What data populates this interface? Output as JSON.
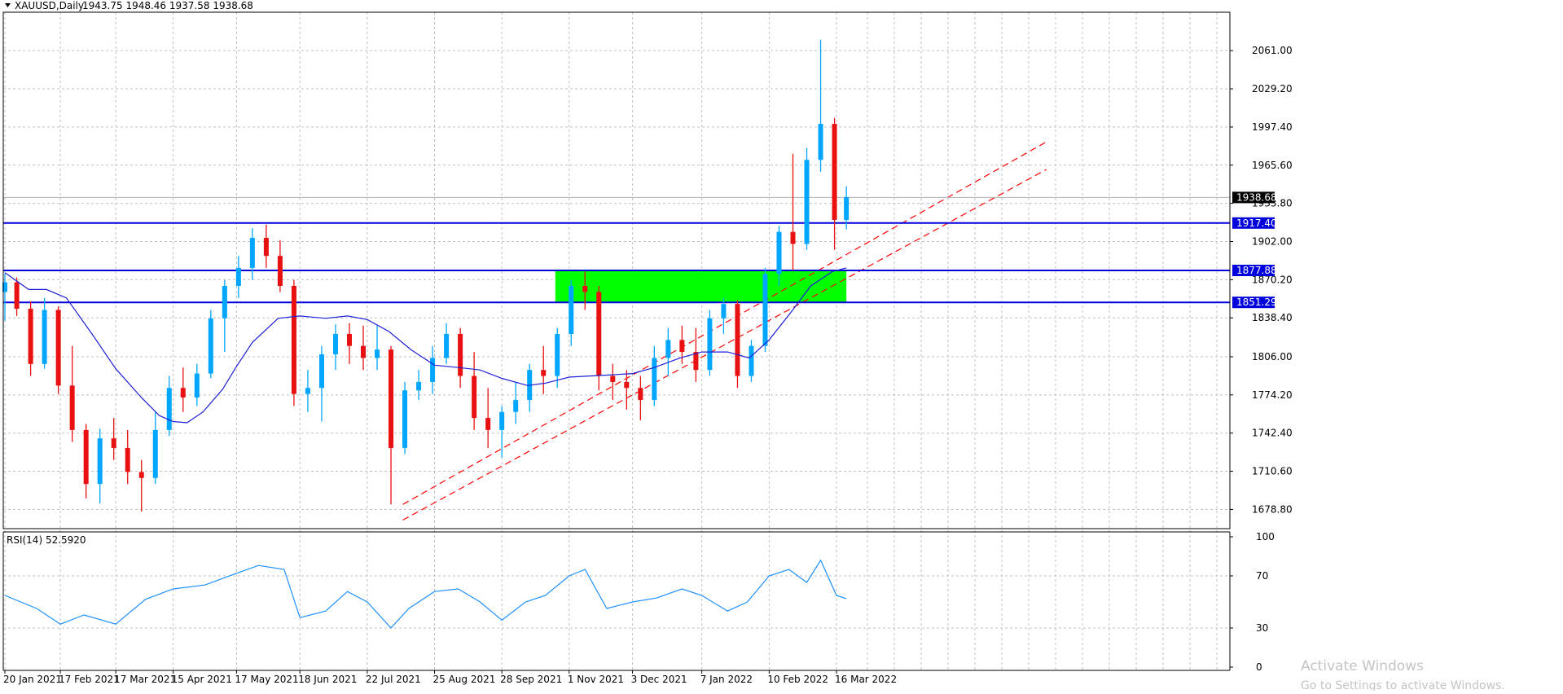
{
  "header": {
    "symbol_label": "XAUUSD,Daily",
    "ohlc": "1943.75 1948.46 1937.58 1938.68"
  },
  "rsi_header": "RSI(14) 52.5920",
  "watermark": {
    "line1": "Activate Windows",
    "line2": "Go to Settings to activate Windows."
  },
  "colors": {
    "up_candle": "#00a6ff",
    "down_candle": "#e81010",
    "moving_average": "#1e1ed8",
    "level_line": "#0000dd",
    "trendline": "#ff0000",
    "zone": "#00ff00",
    "rsi_line": "#1e90ff",
    "grid": "#c0c0c0"
  },
  "chart_data": [
    {
      "type": "candlestick",
      "title": "XAUUSD,Daily",
      "ylim": [
        1662.8,
        2093.0
      ],
      "grid": true,
      "price_ticks": [
        "2061.00",
        "2029.20",
        "1997.40",
        "1965.60",
        "1933.80",
        "1902.00",
        "1870.20",
        "1838.40",
        "1806.00",
        "1774.20",
        "1742.40",
        "1710.60",
        "1678.80"
      ],
      "date_ticks": [
        "20 Jan 2021",
        "17 Feb 2021",
        "17 Mar 2021",
        "15 Apr 2021",
        "17 May 2021",
        "18 Jun 2021",
        "22 Jul 2021",
        "25 Aug 2021",
        "28 Sep 2021",
        "1 Nov 2021",
        "3 Dec 2021",
        "7 Jan 2022",
        "10 Feb 2022",
        "16 Mar 2022"
      ],
      "current_price": "1938.68",
      "horizontal_levels": [
        {
          "label": "1917.40",
          "value": 1917.4
        },
        {
          "label": "1877.88",
          "value": 1877.88
        },
        {
          "label": "1851.29",
          "value": 1851.29
        }
      ],
      "zone": {
        "from_date": "25 Oct 2021",
        "to_date": "21 Mar 2022",
        "low": 1851.29,
        "high": 1877.88
      },
      "trendlines": [
        {
          "from": {
            "date": "9 Aug 2021",
            "price": 1683
          },
          "to": {
            "date": "30 Jun 2022",
            "price": 1985
          }
        },
        {
          "from": {
            "date": "9 Aug 2021",
            "price": 1670
          },
          "to": {
            "date": "30 Jun 2022",
            "price": 1962
          }
        }
      ],
      "moving_average_series": [
        {
          "date": "20 Jan 2021",
          "value": 1876
        },
        {
          "date": "1 Feb 2021",
          "value": 1862
        },
        {
          "date": "10 Feb 2021",
          "value": 1862
        },
        {
          "date": "20 Feb 2021",
          "value": 1855
        },
        {
          "date": "5 Mar 2021",
          "value": 1825
        },
        {
          "date": "17 Mar 2021",
          "value": 1796
        },
        {
          "date": "30 Mar 2021",
          "value": 1772
        },
        {
          "date": "8 Apr 2021",
          "value": 1757
        },
        {
          "date": "15 Apr 2021",
          "value": 1752
        },
        {
          "date": "22 Apr 2021",
          "value": 1751
        },
        {
          "date": "30 Apr 2021",
          "value": 1760
        },
        {
          "date": "10 May 2021",
          "value": 1779
        },
        {
          "date": "17 May 2021",
          "value": 1798
        },
        {
          "date": "25 May 2021",
          "value": 1818
        },
        {
          "date": "7 Jun 2021",
          "value": 1838
        },
        {
          "date": "18 Jun 2021",
          "value": 1840
        },
        {
          "date": "1 Jul 2021",
          "value": 1838
        },
        {
          "date": "12 Jul 2021",
          "value": 1840
        },
        {
          "date": "22 Jul 2021",
          "value": 1837
        },
        {
          "date": "2 Aug 2021",
          "value": 1827
        },
        {
          "date": "13 Aug 2021",
          "value": 1812
        },
        {
          "date": "25 Aug 2021",
          "value": 1799
        },
        {
          "date": "6 Sep 2021",
          "value": 1797
        },
        {
          "date": "17 Sep 2021",
          "value": 1795
        },
        {
          "date": "28 Sep 2021",
          "value": 1788
        },
        {
          "date": "11 Oct 2021",
          "value": 1782
        },
        {
          "date": "20 Oct 2021",
          "value": 1784
        },
        {
          "date": "1 Nov 2021",
          "value": 1789
        },
        {
          "date": "12 Nov 2021",
          "value": 1790
        },
        {
          "date": "23 Nov 2021",
          "value": 1791
        },
        {
          "date": "3 Dec 2021",
          "value": 1792
        },
        {
          "date": "14 Dec 2021",
          "value": 1797
        },
        {
          "date": "27 Dec 2021",
          "value": 1805
        },
        {
          "date": "7 Jan 2022",
          "value": 1810
        },
        {
          "date": "20 Jan 2022",
          "value": 1810
        },
        {
          "date": "31 Jan 2022",
          "value": 1805
        },
        {
          "date": "10 Feb 2022",
          "value": 1820
        },
        {
          "date": "21 Feb 2022",
          "value": 1843
        },
        {
          "date": "3 Mar 2022",
          "value": 1865
        },
        {
          "date": "14 Mar 2022",
          "value": 1877
        },
        {
          "date": "21 Mar 2022",
          "value": 1880
        }
      ],
      "ohlc_series": [
        {
          "date": "20 Jan 2021",
          "open": 1860,
          "high": 1875,
          "low": 1836,
          "close": 1868
        },
        {
          "date": "26 Jan 2021",
          "open": 1868,
          "high": 1872,
          "low": 1840,
          "close": 1846
        },
        {
          "date": "2 Feb 2021",
          "open": 1846,
          "high": 1852,
          "low": 1790,
          "close": 1800
        },
        {
          "date": "9 Feb 2021",
          "open": 1800,
          "high": 1855,
          "low": 1796,
          "close": 1845
        },
        {
          "date": "16 Feb 2021",
          "open": 1845,
          "high": 1848,
          "low": 1775,
          "close": 1782
        },
        {
          "date": "23 Feb 2021",
          "open": 1782,
          "high": 1815,
          "low": 1735,
          "close": 1745
        },
        {
          "date": "2 Mar 2021",
          "open": 1745,
          "high": 1750,
          "low": 1688,
          "close": 1700
        },
        {
          "date": "9 Mar 2021",
          "open": 1700,
          "high": 1746,
          "low": 1684,
          "close": 1738
        },
        {
          "date": "16 Mar 2021",
          "open": 1738,
          "high": 1755,
          "low": 1720,
          "close": 1730
        },
        {
          "date": "23 Mar 2021",
          "open": 1730,
          "high": 1745,
          "low": 1700,
          "close": 1710
        },
        {
          "date": "30 Mar 2021",
          "open": 1710,
          "high": 1720,
          "low": 1677,
          "close": 1705
        },
        {
          "date": "6 Apr 2021",
          "open": 1705,
          "high": 1760,
          "low": 1700,
          "close": 1745
        },
        {
          "date": "13 Apr 2021",
          "open": 1745,
          "high": 1790,
          "low": 1740,
          "close": 1780
        },
        {
          "date": "20 Apr 2021",
          "open": 1780,
          "high": 1797,
          "low": 1760,
          "close": 1772
        },
        {
          "date": "27 Apr 2021",
          "open": 1772,
          "high": 1800,
          "low": 1765,
          "close": 1792
        },
        {
          "date": "4 May 2021",
          "open": 1792,
          "high": 1845,
          "low": 1788,
          "close": 1838
        },
        {
          "date": "11 May 2021",
          "open": 1838,
          "high": 1870,
          "low": 1810,
          "close": 1865
        },
        {
          "date": "18 May 2021",
          "open": 1865,
          "high": 1890,
          "low": 1855,
          "close": 1880
        },
        {
          "date": "25 May 2021",
          "open": 1880,
          "high": 1913,
          "low": 1870,
          "close": 1905
        },
        {
          "date": "1 Jun 2021",
          "open": 1905,
          "high": 1916,
          "low": 1880,
          "close": 1890
        },
        {
          "date": "8 Jun 2021",
          "open": 1890,
          "high": 1903,
          "low": 1860,
          "close": 1865
        },
        {
          "date": "15 Jun 2021",
          "open": 1865,
          "high": 1870,
          "low": 1765,
          "close": 1775
        },
        {
          "date": "22 Jun 2021",
          "open": 1775,
          "high": 1795,
          "low": 1760,
          "close": 1780
        },
        {
          "date": "29 Jun 2021",
          "open": 1780,
          "high": 1815,
          "low": 1752,
          "close": 1808
        },
        {
          "date": "6 Jul 2021",
          "open": 1808,
          "high": 1833,
          "low": 1795,
          "close": 1825
        },
        {
          "date": "13 Jul 2021",
          "open": 1825,
          "high": 1834,
          "low": 1800,
          "close": 1815
        },
        {
          "date": "20 Jul 2021",
          "open": 1815,
          "high": 1832,
          "low": 1795,
          "close": 1805
        },
        {
          "date": "27 Jul 2021",
          "open": 1805,
          "high": 1832,
          "low": 1795,
          "close": 1812
        },
        {
          "date": "3 Aug 2021",
          "open": 1812,
          "high": 1815,
          "low": 1683,
          "close": 1730
        },
        {
          "date": "10 Aug 2021",
          "open": 1730,
          "high": 1785,
          "low": 1725,
          "close": 1778
        },
        {
          "date": "17 Aug 2021",
          "open": 1778,
          "high": 1795,
          "low": 1770,
          "close": 1785
        },
        {
          "date": "24 Aug 2021",
          "open": 1785,
          "high": 1815,
          "low": 1775,
          "close": 1805
        },
        {
          "date": "31 Aug 2021",
          "open": 1805,
          "high": 1834,
          "low": 1800,
          "close": 1825
        },
        {
          "date": "7 Sep 2021",
          "open": 1825,
          "high": 1830,
          "low": 1780,
          "close": 1790
        },
        {
          "date": "14 Sep 2021",
          "open": 1790,
          "high": 1810,
          "low": 1745,
          "close": 1755
        },
        {
          "date": "21 Sep 2021",
          "open": 1755,
          "high": 1780,
          "low": 1730,
          "close": 1745
        },
        {
          "date": "28 Sep 2021",
          "open": 1745,
          "high": 1765,
          "low": 1722,
          "close": 1760
        },
        {
          "date": "5 Oct 2021",
          "open": 1760,
          "high": 1785,
          "low": 1750,
          "close": 1770
        },
        {
          "date": "12 Oct 2021",
          "open": 1770,
          "high": 1800,
          "low": 1760,
          "close": 1795
        },
        {
          "date": "19 Oct 2021",
          "open": 1795,
          "high": 1815,
          "low": 1775,
          "close": 1790
        },
        {
          "date": "26 Oct 2021",
          "open": 1790,
          "high": 1830,
          "low": 1780,
          "close": 1825
        },
        {
          "date": "2 Nov 2021",
          "open": 1825,
          "high": 1870,
          "low": 1815,
          "close": 1865
        },
        {
          "date": "9 Nov 2021",
          "open": 1865,
          "high": 1877,
          "low": 1845,
          "close": 1860
        },
        {
          "date": "16 Nov 2021",
          "open": 1860,
          "high": 1865,
          "low": 1778,
          "close": 1790
        },
        {
          "date": "23 Nov 2021",
          "open": 1790,
          "high": 1800,
          "low": 1770,
          "close": 1785
        },
        {
          "date": "30 Nov 2021",
          "open": 1785,
          "high": 1795,
          "low": 1762,
          "close": 1780
        },
        {
          "date": "7 Dec 2021",
          "open": 1780,
          "high": 1790,
          "low": 1753,
          "close": 1770
        },
        {
          "date": "14 Dec 2021",
          "open": 1770,
          "high": 1815,
          "low": 1765,
          "close": 1805
        },
        {
          "date": "21 Dec 2021",
          "open": 1805,
          "high": 1830,
          "low": 1790,
          "close": 1820
        },
        {
          "date": "28 Dec 2021",
          "open": 1820,
          "high": 1832,
          "low": 1800,
          "close": 1810
        },
        {
          "date": "4 Jan 2022",
          "open": 1810,
          "high": 1830,
          "low": 1785,
          "close": 1795
        },
        {
          "date": "11 Jan 2022",
          "open": 1795,
          "high": 1845,
          "low": 1790,
          "close": 1838
        },
        {
          "date": "18 Jan 2022",
          "open": 1838,
          "high": 1855,
          "low": 1825,
          "close": 1850
        },
        {
          "date": "25 Jan 2022",
          "open": 1850,
          "high": 1853,
          "low": 1780,
          "close": 1790
        },
        {
          "date": "1 Feb 2022",
          "open": 1790,
          "high": 1820,
          "low": 1785,
          "close": 1815
        },
        {
          "date": "8 Feb 2022",
          "open": 1815,
          "high": 1880,
          "low": 1810,
          "close": 1875
        },
        {
          "date": "15 Feb 2022",
          "open": 1875,
          "high": 1915,
          "low": 1865,
          "close": 1910
        },
        {
          "date": "22 Feb 2022",
          "open": 1910,
          "high": 1975,
          "low": 1878,
          "close": 1900
        },
        {
          "date": "1 Mar 2022",
          "open": 1900,
          "high": 1980,
          "low": 1895,
          "close": 1970
        },
        {
          "date": "8 Mar 2022",
          "open": 1970,
          "high": 2070,
          "low": 1960,
          "close": 2000
        },
        {
          "date": "15 Mar 2022",
          "open": 2000,
          "high": 2005,
          "low": 1895,
          "close": 1920
        },
        {
          "date": "21 Mar 2022",
          "open": 1920,
          "high": 1948,
          "low": 1912,
          "close": 1939
        }
      ]
    },
    {
      "type": "line",
      "title": "RSI(14) 52.5920",
      "ylim": [
        0,
        100
      ],
      "y_ticks": [
        "100",
        "70",
        "30",
        "0"
      ],
      "reference_levels": [
        70,
        30
      ],
      "x": [
        "20 Jan 2021",
        "5 Feb 2021",
        "17 Feb 2021",
        "1 Mar 2021",
        "17 Mar 2021",
        "1 Apr 2021",
        "15 Apr 2021",
        "1 May 2021",
        "17 May 2021",
        "28 May 2021",
        "10 Jun 2021",
        "18 Jun 2021",
        "1 Jul 2021",
        "12 Jul 2021",
        "22 Jul 2021",
        "3 Aug 2021",
        "12 Aug 2021",
        "25 Aug 2021",
        "6 Sep 2021",
        "17 Sep 2021",
        "28 Sep 2021",
        "10 Oct 2021",
        "20 Oct 2021",
        "1 Nov 2021",
        "9 Nov 2021",
        "20 Nov 2021",
        "3 Dec 2021",
        "15 Dec 2021",
        "28 Dec 2021",
        "7 Jan 2022",
        "20 Jan 2022",
        "30 Jan 2022",
        "10 Feb 2022",
        "20 Feb 2022",
        "1 Mar 2022",
        "8 Mar 2022",
        "16 Mar 2022",
        "21 Mar 2022"
      ],
      "values": [
        55,
        45,
        33,
        40,
        33,
        52,
        60,
        63,
        72,
        78,
        75,
        38,
        43,
        58,
        50,
        30,
        45,
        58,
        60,
        50,
        36,
        50,
        55,
        70,
        75,
        45,
        50,
        53,
        60,
        55,
        43,
        50,
        70,
        75,
        65,
        82,
        55,
        52.59
      ]
    }
  ]
}
